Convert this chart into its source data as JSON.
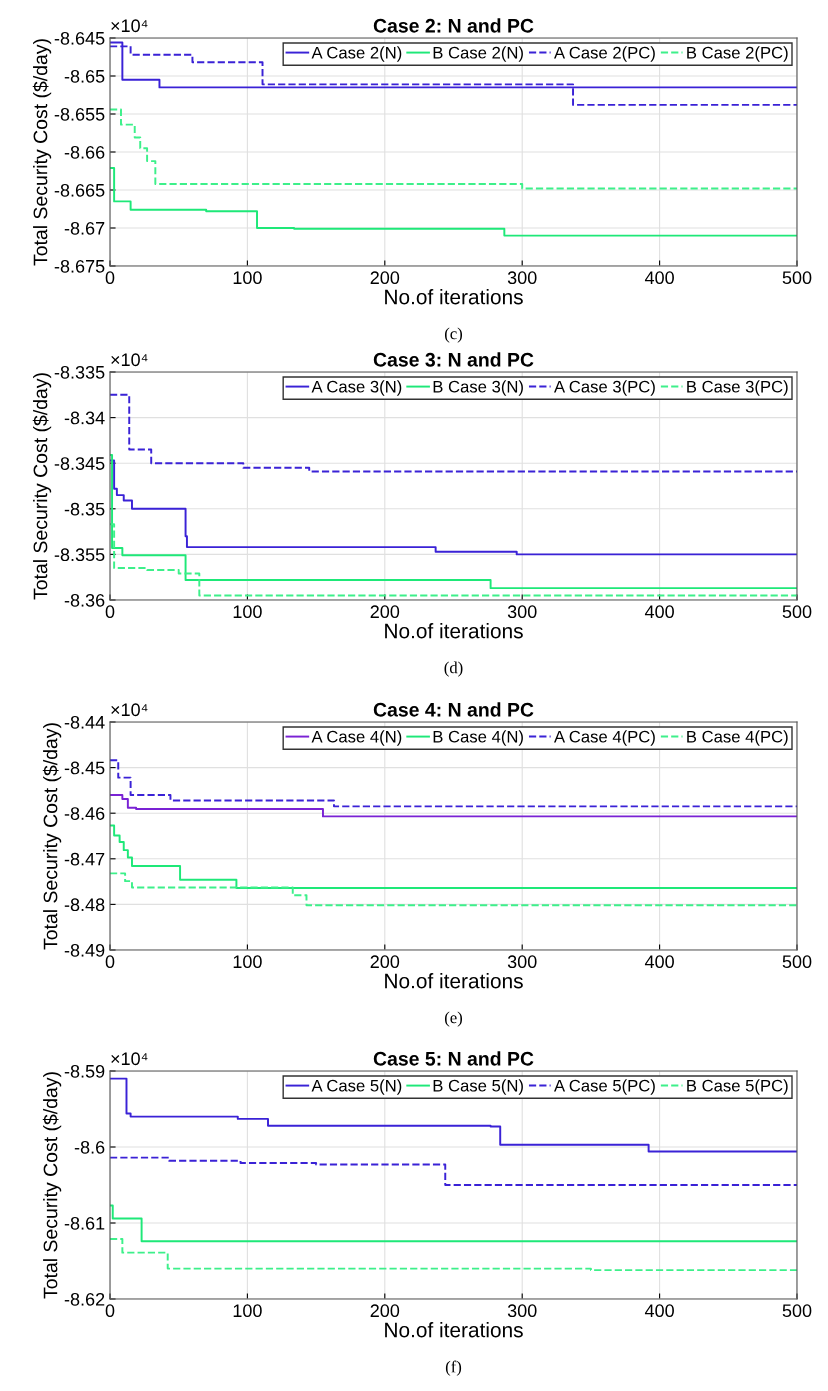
{
  "chart_data": [
    {
      "type": "step",
      "title": "Case 2: N and PC",
      "xlabel": "No.of iterations",
      "ylabel": "Total Security Cost ($/day)",
      "annotations": [
        "×10⁴",
        "(c)"
      ],
      "xlim": [
        0,
        500
      ],
      "xticks": [
        0,
        100,
        200,
        300,
        400,
        500
      ],
      "ylim": [
        -8.675,
        -8.645
      ],
      "yticks": [
        -8.675,
        -8.67,
        -8.665,
        -8.66,
        -8.655,
        -8.65,
        -8.645
      ],
      "grid": true,
      "legend": "top right",
      "series": [
        {
          "name": "A Case 2(N)",
          "color": "#3a22d6",
          "line_style": "solid",
          "x": [
            0,
            9,
            36,
            500
          ],
          "values": [
            -8.6456,
            -8.6505,
            -8.6515,
            -8.6515
          ]
        },
        {
          "name": "B Case 2(N)",
          "color": "#1ee878",
          "line_style": "solid",
          "x": [
            0,
            3,
            15,
            70,
            107,
            134,
            287,
            500
          ],
          "values": [
            -8.6621,
            -8.6665,
            -8.6676,
            -8.6678,
            -8.67,
            -8.6701,
            -8.671,
            -8.671
          ]
        },
        {
          "name": "A Case 2(PC)",
          "color": "#3a22d6",
          "line_style": "dashed",
          "x": [
            0,
            15,
            60,
            111,
            337,
            500
          ],
          "values": [
            -8.6461,
            -8.6472,
            -8.6482,
            -8.6511,
            -8.6538,
            -8.6538
          ]
        },
        {
          "name": "B Case 2(PC)",
          "color": "#3df08a",
          "line_style": "dashed",
          "x": [
            0,
            8,
            18,
            22,
            27,
            33,
            300,
            500
          ],
          "values": [
            -8.6544,
            -8.6564,
            -8.6581,
            -8.6595,
            -8.6612,
            -8.6642,
            -8.6648,
            -8.6648
          ]
        }
      ]
    },
    {
      "type": "step",
      "title": "Case 3: N and PC",
      "xlabel": "No.of iterations",
      "ylabel": "Total Security Cost ($/day)",
      "annotations": [
        "×10⁴",
        "(d)"
      ],
      "xlim": [
        0,
        500
      ],
      "xticks": [
        0,
        100,
        200,
        300,
        400,
        500
      ],
      "ylim": [
        -8.36,
        -8.335
      ],
      "yticks": [
        -8.36,
        -8.355,
        -8.35,
        -8.345,
        -8.34,
        -8.335
      ],
      "grid": true,
      "legend": "top right",
      "series": [
        {
          "name": "A Case 3(N)",
          "color": "#3a22d6",
          "line_style": "solid",
          "x": [
            0,
            3,
            5,
            10,
            16,
            55,
            56,
            237,
            296,
            500
          ],
          "values": [
            -8.3447,
            -8.3478,
            -8.3485,
            -8.3491,
            -8.35,
            -8.353,
            -8.3542,
            -8.3547,
            -8.355,
            -8.355
          ]
        },
        {
          "name": "B Case 3(N)",
          "color": "#1ee878",
          "line_style": "solid",
          "x": [
            0,
            1.5,
            9,
            55,
            277,
            500
          ],
          "values": [
            -8.3441,
            -8.3543,
            -8.3551,
            -8.3578,
            -8.3587,
            -8.3587
          ]
        },
        {
          "name": "A Case 3(PC)",
          "color": "#3a22d6",
          "line_style": "dashed",
          "x": [
            0,
            14,
            30,
            97,
            145,
            500
          ],
          "values": [
            -8.3375,
            -8.3435,
            -8.345,
            -8.3455,
            -8.3459,
            -8.3459
          ]
        },
        {
          "name": "B Case 3(PC)",
          "color": "#3df08a",
          "line_style": "dashed",
          "x": [
            0,
            3,
            27,
            50,
            65,
            500
          ],
          "values": [
            -8.3517,
            -8.3565,
            -8.3567,
            -8.3571,
            -8.3595,
            -8.3595
          ]
        }
      ]
    },
    {
      "type": "step",
      "title": "Case 4: N and PC",
      "xlabel": "No.of iterations",
      "ylabel": "Total Security Cost ($/day)",
      "annotations": [
        "×10⁴",
        "(e)"
      ],
      "xlim": [
        0,
        500
      ],
      "xticks": [
        0,
        100,
        200,
        300,
        400,
        500
      ],
      "ylim": [
        -8.49,
        -8.44
      ],
      "yticks": [
        -8.49,
        -8.48,
        -8.47,
        -8.46,
        -8.45,
        -8.44
      ],
      "grid": true,
      "legend": "top right",
      "series": [
        {
          "name": "A Case 4(N)",
          "color": "#7a22d4",
          "line_style": "solid",
          "x": [
            0,
            9,
            13,
            19,
            155,
            500
          ],
          "values": [
            -8.456,
            -8.4569,
            -8.4588,
            -8.4591,
            -8.4607,
            -8.4607
          ]
        },
        {
          "name": "B Case 4(N)",
          "color": "#1ee878",
          "line_style": "solid",
          "x": [
            0,
            3,
            7,
            10,
            13,
            16,
            51,
            92,
            500
          ],
          "values": [
            -8.4627,
            -8.4649,
            -8.4663,
            -8.4681,
            -8.4697,
            -8.4716,
            -8.4746,
            -8.4764,
            -8.4764
          ]
        },
        {
          "name": "A Case 4(PC)",
          "color": "#3a22d6",
          "line_style": "dashed",
          "x": [
            0,
            6,
            15,
            44,
            163,
            500
          ],
          "values": [
            -8.4484,
            -8.4522,
            -8.456,
            -8.4572,
            -8.4585,
            -8.4585
          ]
        },
        {
          "name": "B Case 4(PC)",
          "color": "#3df08a",
          "line_style": "dashed",
          "x": [
            0,
            11,
            16,
            133,
            143,
            500
          ],
          "values": [
            -8.4732,
            -8.4749,
            -8.4763,
            -8.478,
            -8.4802,
            -8.4802
          ]
        }
      ]
    },
    {
      "type": "step",
      "title": "Case 5: N and PC",
      "xlabel": "No.of iterations",
      "ylabel": "Total Security Cost ($/day)",
      "annotations": [
        "×10⁴",
        "(f)"
      ],
      "xlim": [
        0,
        500
      ],
      "xticks": [
        0,
        100,
        200,
        300,
        400,
        500
      ],
      "ylim": [
        -8.62,
        -8.59
      ],
      "yticks": [
        -8.62,
        -8.61,
        -8.6,
        -8.59
      ],
      "grid": true,
      "legend": "top right",
      "series": [
        {
          "name": "A Case 5(N)",
          "color": "#3a22d6",
          "line_style": "solid",
          "x": [
            0,
            12,
            15,
            93,
            115,
            277,
            284,
            392,
            500
          ],
          "values": [
            -8.591,
            -8.5956,
            -8.596,
            -8.5963,
            -8.5972,
            -8.5973,
            -8.5997,
            -8.6006,
            -8.6006
          ]
        },
        {
          "name": "B Case 5(N)",
          "color": "#1ee878",
          "line_style": "solid",
          "x": [
            0,
            2,
            23,
            500
          ],
          "values": [
            -8.6077,
            -8.6094,
            -8.6124,
            -8.6124
          ]
        },
        {
          "name": "A Case 5(PC)",
          "color": "#3a22d6",
          "line_style": "dashed",
          "x": [
            0,
            43,
            95,
            150,
            244,
            500
          ],
          "values": [
            -8.6014,
            -8.6018,
            -8.6021,
            -8.6023,
            -8.605,
            -8.605
          ]
        },
        {
          "name": "B Case 5(PC)",
          "color": "#3df08a",
          "line_style": "dashed",
          "x": [
            0,
            9,
            42,
            350,
            500
          ],
          "values": [
            -8.6121,
            -8.6139,
            -8.616,
            -8.6162,
            -8.6162
          ]
        }
      ]
    }
  ]
}
